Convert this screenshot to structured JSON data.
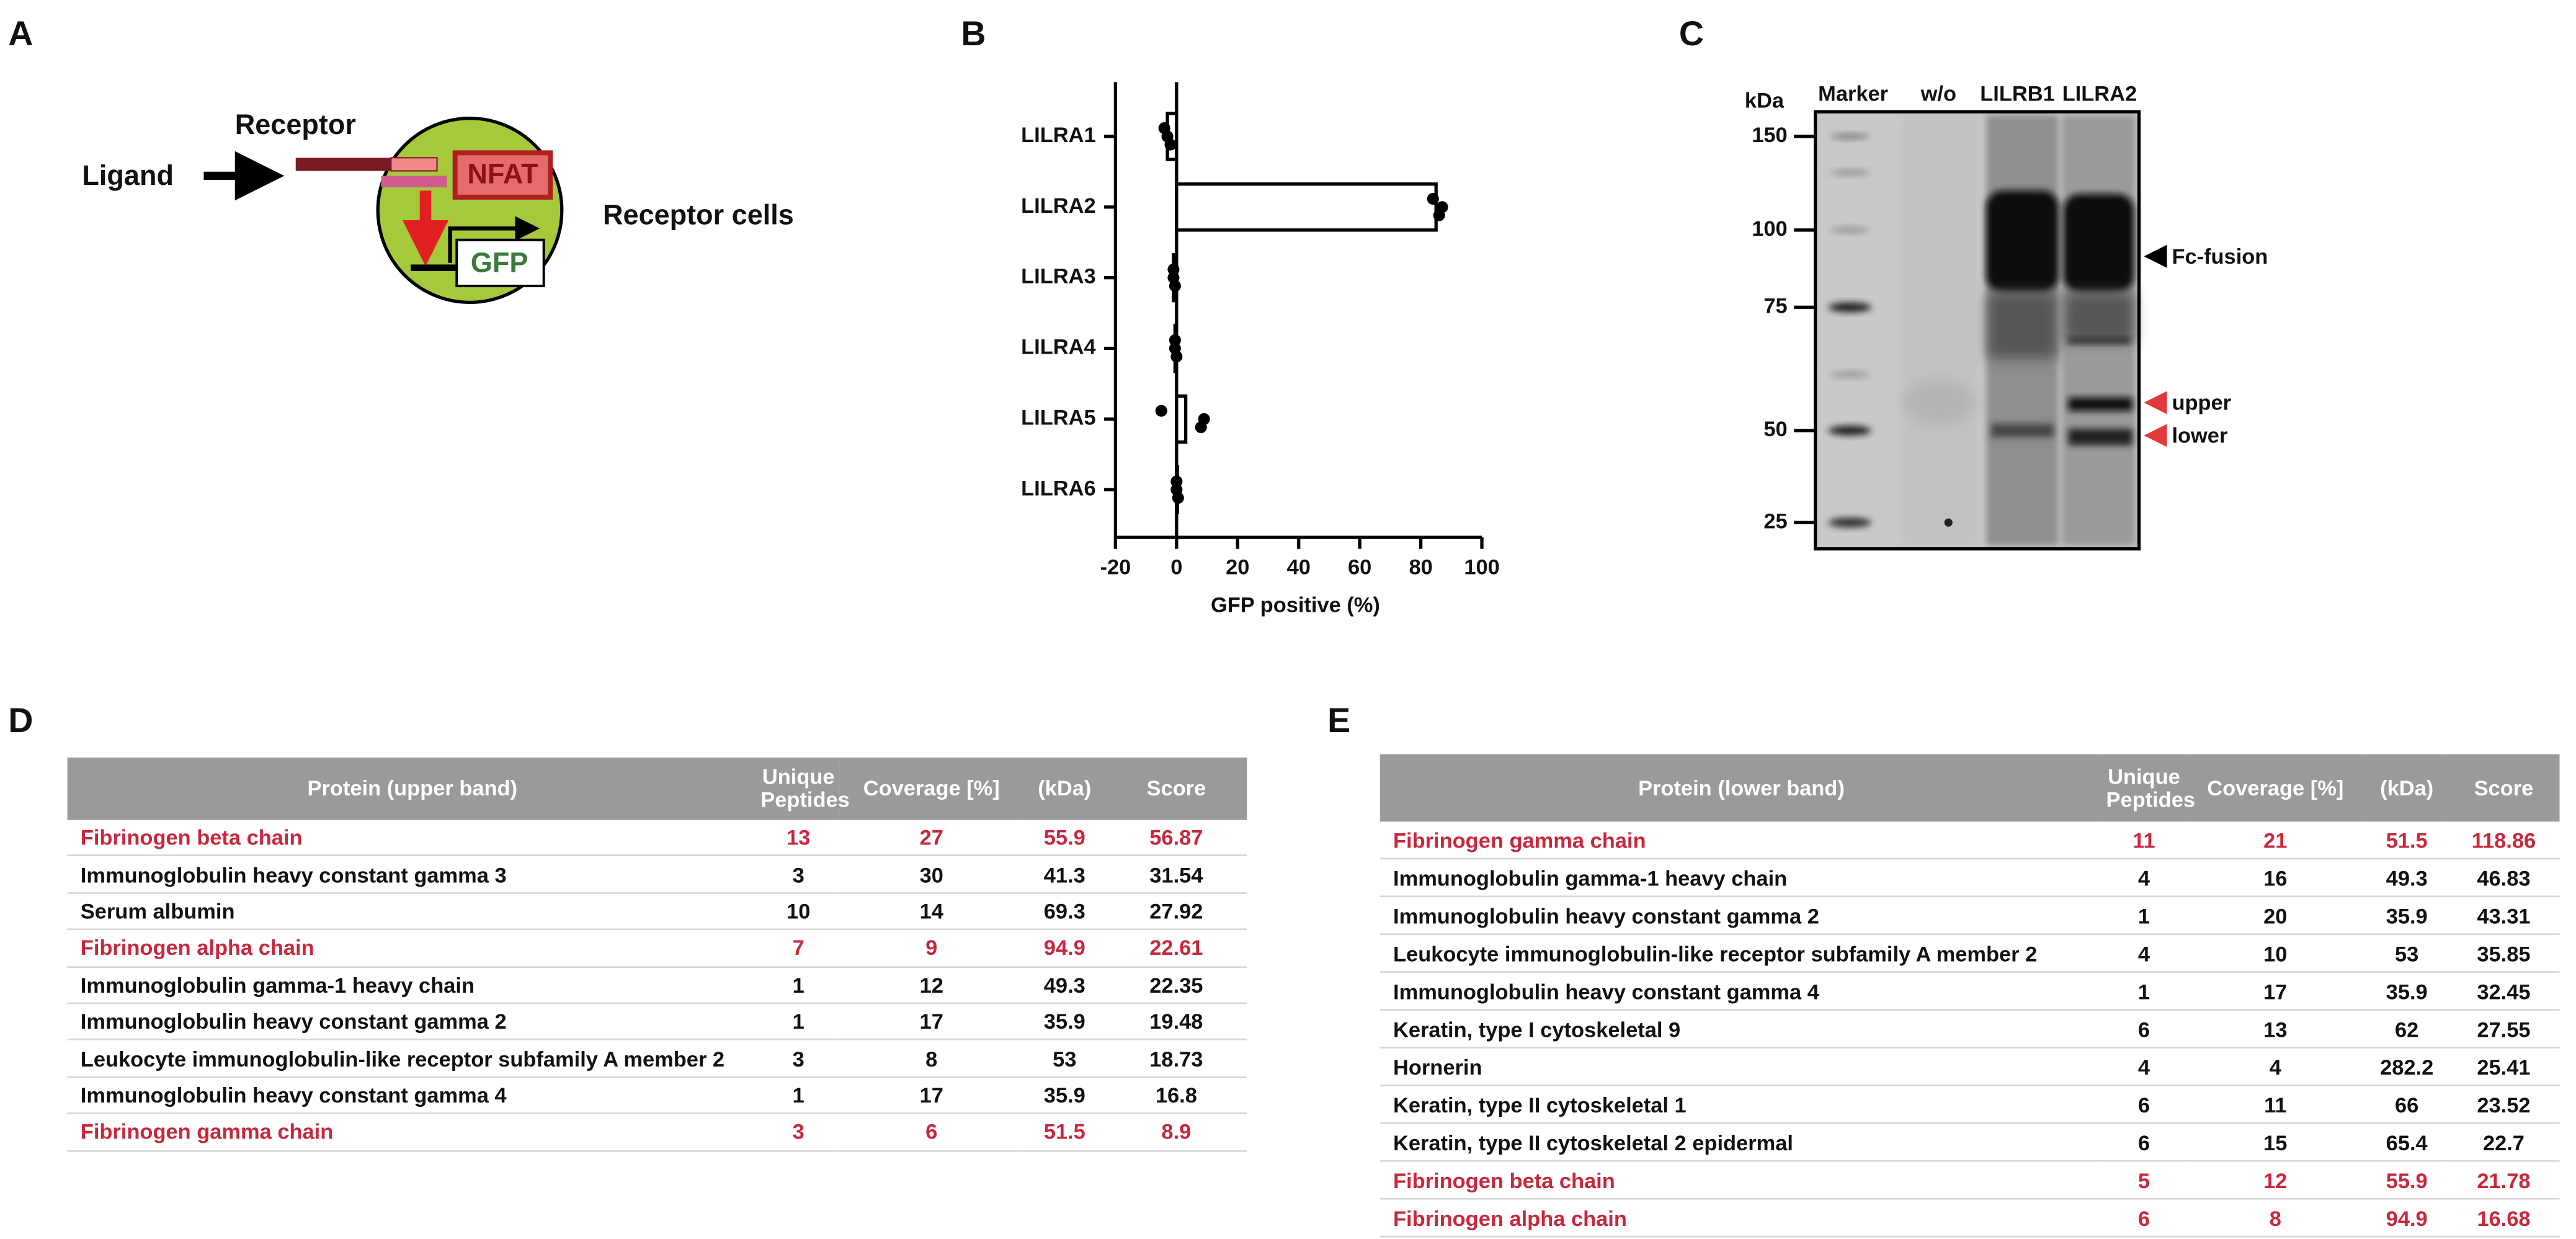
{
  "labels": {
    "a": "A",
    "b": "B",
    "c": "C",
    "d": "D",
    "e": "E"
  },
  "diagram": {
    "receptor": "Receptor",
    "ligand": "Ligand",
    "nfat": "NFAT",
    "gfp": "GFP",
    "cells": "Receptor cells"
  },
  "chart_data": {
    "type": "bar",
    "orientation": "horizontal",
    "categories": [
      "LILRA1",
      "LILRA2",
      "LILRA3",
      "LILRA4",
      "LILRA5",
      "LILRA6"
    ],
    "values": [
      -3,
      85,
      -1,
      -0.5,
      3,
      0.3
    ],
    "points": [
      [
        -4,
        -3,
        -2
      ],
      [
        84,
        87,
        86
      ],
      [
        -1,
        -1,
        -0.5
      ],
      [
        -0.5,
        -0.5,
        0
      ],
      [
        -5,
        9,
        8
      ],
      [
        0,
        0,
        0.5
      ]
    ],
    "xlim": [
      -20,
      100
    ],
    "xticks": [
      -20,
      0,
      20,
      40,
      60,
      80,
      100
    ],
    "xlabel": "GFP positive (%)",
    "color": "#ffffff",
    "edge_color": "#000000"
  },
  "blot": {
    "unit": "kDa",
    "lanes": [
      "Marker",
      "w/o",
      "LILRB1",
      "LILRA2"
    ],
    "ticks": [
      150,
      100,
      75,
      50,
      25
    ],
    "annotations": [
      "Fc-fusion",
      "upper",
      "lower"
    ]
  },
  "table_d": {
    "header": [
      "Protein (upper band)",
      "Unique Peptides",
      "Coverage [%]",
      "(kDa)",
      "Score"
    ],
    "highlight_color": "#c8283c",
    "highlight_rows": [
      0,
      3,
      8
    ],
    "rows": [
      [
        "Fibrinogen beta chain",
        13,
        27,
        55.9,
        56.87
      ],
      [
        "Immunoglobulin heavy constant gamma 3",
        3,
        30,
        41.3,
        31.54
      ],
      [
        "Serum albumin",
        10,
        14,
        69.3,
        27.92
      ],
      [
        "Fibrinogen alpha chain",
        7,
        9,
        94.9,
        22.61
      ],
      [
        "Immunoglobulin gamma-1 heavy chain",
        1,
        12,
        49.3,
        22.35
      ],
      [
        "Immunoglobulin heavy constant gamma 2",
        1,
        17,
        35.9,
        19.48
      ],
      [
        "Leukocyte immunoglobulin-like receptor subfamily A member 2",
        3,
        8,
        53,
        18.73
      ],
      [
        "Immunoglobulin heavy constant gamma 4",
        1,
        17,
        35.9,
        16.8
      ],
      [
        "Fibrinogen gamma chain",
        3,
        6,
        51.5,
        8.9
      ]
    ]
  },
  "table_e": {
    "header": [
      "Protein (lower band)",
      "Unique Peptides",
      "Coverage [%]",
      "(kDa)",
      "Score"
    ],
    "highlight_color": "#c8283c",
    "highlight_rows": [
      0,
      9,
      10
    ],
    "rows": [
      [
        "Fibrinogen gamma chain",
        11,
        21,
        51.5,
        118.86
      ],
      [
        "Immunoglobulin gamma-1 heavy chain",
        4,
        16,
        49.3,
        46.83
      ],
      [
        "Immunoglobulin heavy constant gamma 2",
        1,
        20,
        35.9,
        43.31
      ],
      [
        "Leukocyte immunoglobulin-like receptor subfamily A member 2",
        4,
        10,
        53,
        35.85
      ],
      [
        "Immunoglobulin heavy constant gamma 4",
        1,
        17,
        35.9,
        32.45
      ],
      [
        "Keratin, type I cytoskeletal 9",
        6,
        13,
        62,
        27.55
      ],
      [
        "Hornerin",
        4,
        4,
        282.2,
        25.41
      ],
      [
        "Keratin, type II cytoskeletal 1",
        6,
        11,
        66,
        23.52
      ],
      [
        "Keratin, type II cytoskeletal 2 epidermal",
        6,
        15,
        65.4,
        22.7
      ],
      [
        "Fibrinogen beta chain",
        5,
        12,
        55.9,
        21.78
      ],
      [
        "Fibrinogen alpha chain",
        6,
        8,
        94.9,
        16.68
      ]
    ]
  }
}
